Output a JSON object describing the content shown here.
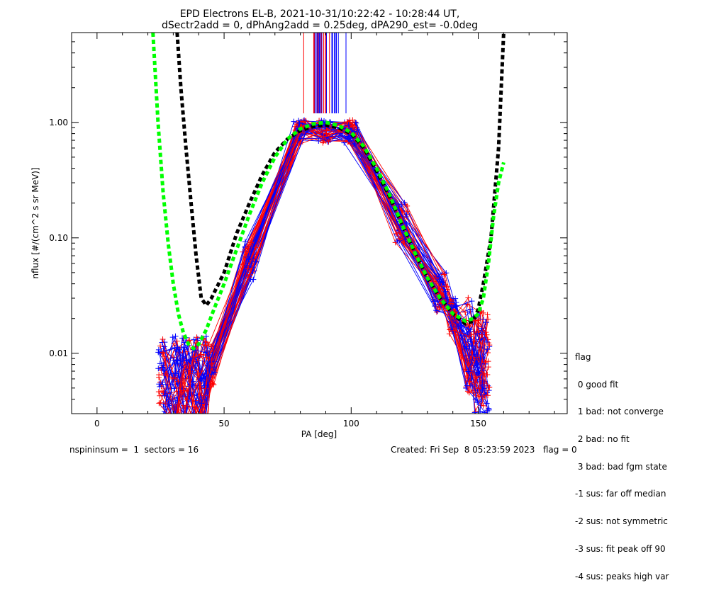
{
  "chart_data": {
    "type": "scatter",
    "title": "EPD Electrons EL-B, 2021-10-31/10:22:42 - 10:28:44 UT,",
    "subtitle": "dSectr2add = 0, dPhAng2add = 0.25deg, dPA290_est=  -0.0deg",
    "xlabel": "PA [deg]",
    "ylabel": "nflux [#/(cm^2 s sr MeV)]",
    "xlim": [
      -10,
      185
    ],
    "ylim": [
      0.003,
      6.0
    ],
    "yscale": "log",
    "grid": false,
    "x_ticks": [
      0,
      50,
      100,
      150
    ],
    "x_tick_labels": [
      "0",
      "50",
      "100",
      "150"
    ],
    "y_ticks": [
      0.01,
      0.1,
      1.0
    ],
    "y_tick_labels": [
      "0.01",
      "0.10",
      "1.00"
    ],
    "colors": {
      "red": "#ff0000",
      "blue": "#0000ff",
      "black": "#000000",
      "green": "#00ff00"
    },
    "fit_curves": [
      {
        "color": "black",
        "style": "dotted",
        "x": [
          31.5,
          33,
          35,
          37,
          39,
          41,
          43,
          45,
          50,
          55,
          60,
          65,
          70,
          75,
          80,
          85,
          90,
          95,
          100,
          105,
          110,
          115,
          120,
          125,
          130,
          135,
          140,
          145,
          148,
          150,
          152,
          155,
          158,
          160
        ],
        "y": [
          6.0,
          2.0,
          0.6,
          0.2,
          0.07,
          0.03,
          0.026,
          0.03,
          0.05,
          0.11,
          0.2,
          0.35,
          0.55,
          0.72,
          0.85,
          0.92,
          0.95,
          0.9,
          0.8,
          0.6,
          0.38,
          0.23,
          0.13,
          0.075,
          0.045,
          0.03,
          0.022,
          0.018,
          0.019,
          0.024,
          0.04,
          0.1,
          0.6,
          6.0
        ]
      },
      {
        "color": "green",
        "style": "dotted",
        "x": [
          22,
          24,
          26,
          28,
          30,
          32,
          34,
          36,
          38,
          40,
          43,
          46,
          50,
          55,
          60,
          65,
          70,
          75,
          80,
          85,
          90,
          95,
          100,
          105,
          110,
          115,
          120,
          125,
          130,
          135,
          140,
          145,
          148,
          150,
          152,
          154,
          156,
          158,
          160
        ],
        "y": [
          6.0,
          1.0,
          0.25,
          0.09,
          0.04,
          0.022,
          0.015,
          0.012,
          0.011,
          0.012,
          0.016,
          0.024,
          0.04,
          0.08,
          0.16,
          0.3,
          0.5,
          0.72,
          0.88,
          0.97,
          1.0,
          0.94,
          0.82,
          0.62,
          0.4,
          0.24,
          0.13,
          0.075,
          0.045,
          0.03,
          0.022,
          0.019,
          0.02,
          0.022,
          0.03,
          0.06,
          0.15,
          0.3,
          0.45
        ]
      }
    ]
  },
  "legend": {
    "title": "flag",
    "entries": [
      " 0 good fit",
      " 1 bad: not converge",
      " 2 bad: no fit",
      " 3 bad: bad fgm state",
      "-1 sus: far off median",
      "-2 sus: not symmetric",
      "-3 sus: fit peak off 90",
      "-4 sus: peaks high var"
    ]
  },
  "footer": {
    "left": "nspininsum =  1  sectors = 16",
    "right": "Created: Fri Sep  8 05:23:59 2023   flag = 0"
  }
}
